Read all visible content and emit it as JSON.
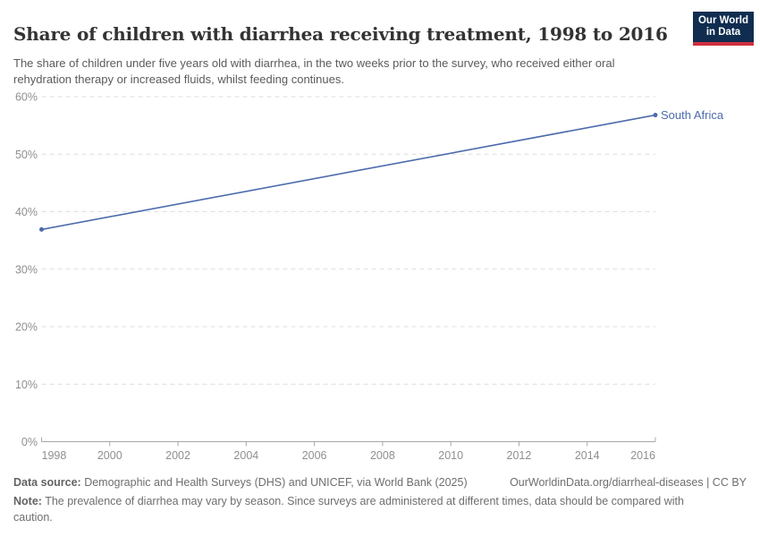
{
  "header": {
    "title": "Share of children with diarrhea receiving treatment, 1998 to 2016",
    "subtitle": "The share of children under five years old with diarrhea, in the two weeks prior to the survey, who received either oral rehydration therapy or increased fluids, whilst feeding continues.",
    "logo": {
      "line1": "Our World",
      "line2": "in Data"
    }
  },
  "chart_data": {
    "type": "line",
    "title": "Share of children with diarrhea receiving treatment, 1998 to 2016",
    "xlabel": "",
    "ylabel": "",
    "xlim": [
      1998,
      2016
    ],
    "ylim": [
      0,
      60
    ],
    "x_ticks": [
      1998,
      2000,
      2002,
      2004,
      2006,
      2008,
      2010,
      2012,
      2014,
      2016
    ],
    "y_ticks": [
      0,
      10,
      20,
      30,
      40,
      50,
      60
    ],
    "y_tick_suffix": "%",
    "grid": "horizontal-dashed",
    "legend_position": "end-of-line-label",
    "series": [
      {
        "name": "South Africa",
        "color": "#4c6bac",
        "points": [
          {
            "x": 1998,
            "y": 36.9
          },
          {
            "x": 2016,
            "y": 56.8
          }
        ]
      }
    ]
  },
  "footer": {
    "source_label": "Data source:",
    "source_text": " Demographic and Health Surveys (DHS) and UNICEF, via World Bank (2025)",
    "attribution": "OurWorldinData.org/diarrheal-diseases | CC BY",
    "note_label": "Note:",
    "note_text": " The prevalence of diarrhea may vary by season. Since surveys are administered at different times, data should be compared with caution."
  },
  "colors": {
    "line": "#4c6bac",
    "logo_bg": "#102d50",
    "logo_stripe": "#cf303e",
    "gridline": "#dedede",
    "axis": "#a8a8a8",
    "tick_label": "#8f8f8f",
    "title_text": "#333333",
    "subtitle_text": "#5b5b5b",
    "footer_text": "#6e6e6e"
  }
}
